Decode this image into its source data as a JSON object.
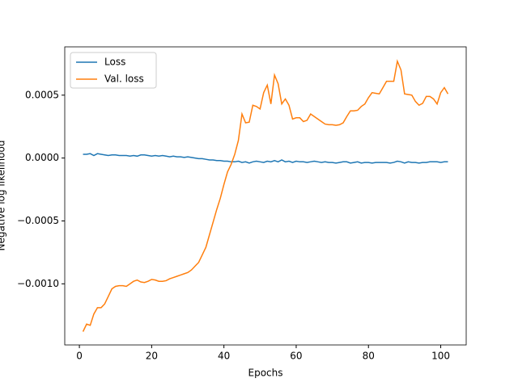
{
  "chart_data": {
    "type": "line",
    "xlabel": "Epochs",
    "ylabel": "Negative log likelihood",
    "x": [
      1,
      2,
      3,
      4,
      5,
      6,
      7,
      8,
      9,
      10,
      11,
      12,
      13,
      14,
      15,
      16,
      17,
      18,
      19,
      20,
      21,
      22,
      23,
      24,
      25,
      26,
      27,
      28,
      29,
      30,
      31,
      32,
      33,
      34,
      35,
      36,
      37,
      38,
      39,
      40,
      41,
      42,
      43,
      44,
      45,
      46,
      47,
      48,
      49,
      50,
      51,
      52,
      53,
      54,
      55,
      56,
      57,
      58,
      59,
      60,
      61,
      62,
      63,
      64,
      65,
      66,
      67,
      68,
      69,
      70,
      71,
      72,
      73,
      74,
      75,
      76,
      77,
      78,
      79,
      80,
      81,
      82,
      83,
      84,
      85,
      86,
      87,
      88,
      89,
      90,
      91,
      92,
      93,
      94,
      95,
      96,
      97,
      98,
      99,
      100,
      101,
      102
    ],
    "series": [
      {
        "name": "Loss",
        "color": "#1f77b4",
        "values": [
          3e-05,
          3e-05,
          3.5e-05,
          2e-05,
          3.5e-05,
          3e-05,
          2.5e-05,
          2e-05,
          2.5e-05,
          2.5e-05,
          2e-05,
          2e-05,
          2e-05,
          1.5e-05,
          2e-05,
          1.5e-05,
          2.5e-05,
          2.5e-05,
          2e-05,
          1.5e-05,
          2e-05,
          1.5e-05,
          2e-05,
          1.5e-05,
          1e-05,
          1.5e-05,
          1e-05,
          1e-05,
          5e-06,
          1e-05,
          5e-06,
          0,
          -5e-06,
          -5e-06,
          -1e-05,
          -1.5e-05,
          -1.5e-05,
          -2e-05,
          -2e-05,
          -2.5e-05,
          -2.5e-05,
          -3e-05,
          -3e-05,
          -2.5e-05,
          -3.5e-05,
          -3e-05,
          -4e-05,
          -3e-05,
          -2.5e-05,
          -3e-05,
          -3.5e-05,
          -2.5e-05,
          -3e-05,
          -2e-05,
          -3e-05,
          -1.5e-05,
          -3e-05,
          -2.5e-05,
          -3.5e-05,
          -2.5e-05,
          -3e-05,
          -3e-05,
          -3.5e-05,
          -3e-05,
          -2.5e-05,
          -3e-05,
          -3.5e-05,
          -3e-05,
          -3.5e-05,
          -3.5e-05,
          -4e-05,
          -3.5e-05,
          -3e-05,
          -3e-05,
          -4e-05,
          -3.5e-05,
          -3e-05,
          -4e-05,
          -3.5e-05,
          -3.5e-05,
          -4e-05,
          -3.5e-05,
          -3.5e-05,
          -3.5e-05,
          -3.5e-05,
          -4e-05,
          -3.5e-05,
          -2.5e-05,
          -3e-05,
          -4e-05,
          -3e-05,
          -3.5e-05,
          -3.5e-05,
          -4e-05,
          -3.5e-05,
          -3.5e-05,
          -3e-05,
          -3e-05,
          -3e-05,
          -3.5e-05,
          -3e-05,
          -3e-05
        ]
      },
      {
        "name": "Val. loss",
        "color": "#ff7f0e",
        "values": [
          -0.00138,
          -0.00132,
          -0.00133,
          -0.00124,
          -0.00119,
          -0.00119,
          -0.00116,
          -0.0011,
          -0.00104,
          -0.00102,
          -0.001015,
          -0.001015,
          -0.00102,
          -0.001,
          -0.00098,
          -0.00097,
          -0.000985,
          -0.00099,
          -0.00098,
          -0.000965,
          -0.00097,
          -0.00098,
          -0.00098,
          -0.000975,
          -0.00096,
          -0.00095,
          -0.00094,
          -0.00093,
          -0.00092,
          -0.00091,
          -0.00089,
          -0.00086,
          -0.00083,
          -0.00077,
          -0.00071,
          -0.00061,
          -0.00051,
          -0.00041,
          -0.00032,
          -0.00021,
          -0.00011,
          -5e-05,
          3e-05,
          0.00014,
          0.00035,
          0.00028,
          0.000285,
          0.00042,
          0.00041,
          0.00039,
          0.00052,
          0.00058,
          0.00043,
          0.00066,
          0.00059,
          0.00043,
          0.00047,
          0.00042,
          0.00031,
          0.00032,
          0.00032,
          0.00029,
          0.0003,
          0.00035,
          0.00033,
          0.00031,
          0.00029,
          0.00027,
          0.000265,
          0.000265,
          0.00026,
          0.000265,
          0.00028,
          0.00033,
          0.000375,
          0.000375,
          0.00038,
          0.00041,
          0.00043,
          0.00048,
          0.00052,
          0.000515,
          0.00051,
          0.00056,
          0.00061,
          0.00061,
          0.00061,
          0.00077,
          0.0007,
          0.00051,
          0.000505,
          0.0005,
          0.00045,
          0.00042,
          0.000435,
          0.00049,
          0.00049,
          0.00047,
          0.00043,
          0.00052,
          0.00056,
          0.00051
        ]
      }
    ],
    "xlim": [
      -4.05,
      107.05
    ],
    "xticks": [
      0,
      20,
      40,
      60,
      80,
      100
    ],
    "ylim": [
      -0.001486,
      0.000884
    ],
    "yticks": [
      {
        "value": -0.001,
        "label": "−0.0010"
      },
      {
        "value": -0.0005,
        "label": "−0.0005"
      },
      {
        "value": 0,
        "label": "0.0000"
      },
      0.0005
    ],
    "legend": "upper left"
  }
}
